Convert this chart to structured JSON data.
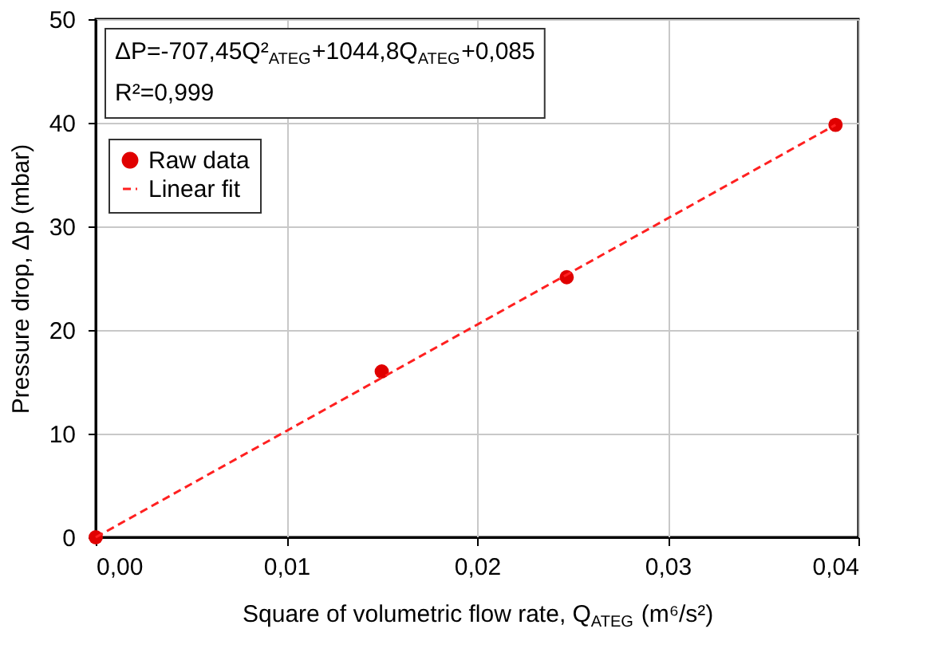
{
  "chart_data": {
    "type": "scatter",
    "xlabel": "Square of volumetric flow rate, Q$_{ATEG}$ (m⁶/s²)",
    "ylabel": "Pressure drop, Δp (mbar)",
    "annotations": [
      "ΔP=-707,45Q²$_{ATEG}$+1044,8Q$_{ATEG}$+0,085",
      "R²=0,999"
    ],
    "series": [
      {
        "name": "Raw data",
        "color": "#e00000",
        "marker": "circle",
        "x": [
          0,
          0.015,
          0.0247,
          0.0388
        ],
        "values": [
          0,
          16,
          25.1,
          39.8
        ]
      },
      {
        "name": "Linear fit",
        "type": "line",
        "color": "#ff2020",
        "line_style": "dashed",
        "x": [
          0,
          0.0388
        ],
        "values": [
          0,
          39.8
        ]
      }
    ],
    "xlim": [
      0,
      0.04
    ],
    "xticks": [
      {
        "value": 0,
        "label": "0,00"
      },
      {
        "value": 0.01,
        "label": "0,01"
      },
      {
        "value": 0.02,
        "label": "0,02"
      },
      {
        "value": 0.03,
        "label": "0,03"
      },
      {
        "value": 0.04,
        "label": "0,04"
      }
    ],
    "ylim": [
      0,
      50
    ],
    "yticks": [
      0,
      10,
      20,
      30,
      40,
      50
    ],
    "grid": true,
    "legend": "top left"
  }
}
